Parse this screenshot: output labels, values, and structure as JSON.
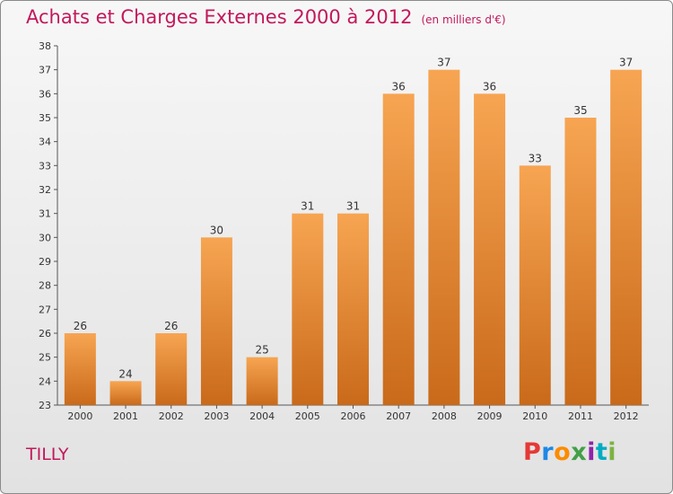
{
  "header": {
    "title": "Achats et Charges Externes 2000 à 2012",
    "unit": "(en milliers d'€)"
  },
  "footer": {
    "commune": "TILLY"
  },
  "logo": {
    "letters": [
      "P",
      "r",
      "o",
      "x",
      "i",
      "t",
      "i"
    ],
    "colors": [
      "#e53935",
      "#1e88e5",
      "#fb8c00",
      "#43a047",
      "#8e24aa",
      "#00acc1",
      "#7cb342"
    ]
  },
  "chart_data": {
    "type": "bar",
    "title": "Achats et Charges Externes 2000 à 2012",
    "subtitle": "(en milliers d'€)",
    "categories": [
      "2000",
      "2001",
      "2002",
      "2003",
      "2004",
      "2005",
      "2006",
      "2007",
      "2008",
      "2009",
      "2010",
      "2011",
      "2012"
    ],
    "values": [
      26,
      24,
      26,
      30,
      25,
      31,
      31,
      36,
      37,
      36,
      33,
      35,
      37
    ],
    "ylim": [
      23,
      38
    ],
    "yticks": [
      23,
      24,
      25,
      26,
      27,
      28,
      29,
      30,
      31,
      32,
      33,
      34,
      35,
      36,
      37,
      38
    ],
    "grid": false,
    "bar_color_top": "#f7a552",
    "bar_color_bottom": "#c96a1a"
  }
}
